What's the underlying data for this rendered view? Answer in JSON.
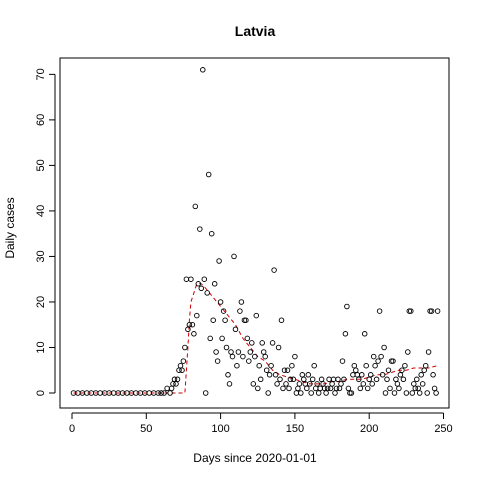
{
  "chart_data": {
    "type": "scatter",
    "title": "Latvia",
    "xlabel": "Days since 2020-01-01",
    "ylabel": "Daily cases",
    "xlim": [
      0,
      250
    ],
    "ylim": [
      0,
      72
    ],
    "xticks": [
      0,
      50,
      100,
      150,
      200,
      250
    ],
    "yticks": [
      0,
      10,
      20,
      30,
      40,
      50,
      60,
      70
    ],
    "grid": false,
    "legend": "none",
    "colors": {
      "points": "#000000",
      "trend": "#cc0000",
      "axis": "#000000"
    },
    "points": [
      [
        1,
        0
      ],
      [
        4,
        0
      ],
      [
        7,
        0
      ],
      [
        10,
        0
      ],
      [
        13,
        0
      ],
      [
        16,
        0
      ],
      [
        19,
        0
      ],
      [
        22,
        0
      ],
      [
        25,
        0
      ],
      [
        28,
        0
      ],
      [
        31,
        0
      ],
      [
        34,
        0
      ],
      [
        37,
        0
      ],
      [
        40,
        0
      ],
      [
        43,
        0
      ],
      [
        46,
        0
      ],
      [
        49,
        0
      ],
      [
        52,
        0
      ],
      [
        55,
        0
      ],
      [
        58,
        0
      ],
      [
        60,
        0
      ],
      [
        62,
        0
      ],
      [
        64,
        1
      ],
      [
        66,
        0
      ],
      [
        67,
        1
      ],
      [
        68,
        2
      ],
      [
        69,
        3
      ],
      [
        70,
        2
      ],
      [
        71,
        3
      ],
      [
        72,
        5
      ],
      [
        73,
        6
      ],
      [
        74,
        5
      ],
      [
        75,
        7
      ],
      [
        76,
        10
      ],
      [
        77,
        25
      ],
      [
        78,
        14
      ],
      [
        79,
        15
      ],
      [
        80,
        25
      ],
      [
        81,
        15
      ],
      [
        82,
        13
      ],
      [
        83,
        41
      ],
      [
        84,
        17
      ],
      [
        85,
        24
      ],
      [
        86,
        36
      ],
      [
        87,
        23
      ],
      [
        88,
        71
      ],
      [
        89,
        25
      ],
      [
        90,
        0
      ],
      [
        91,
        22
      ],
      [
        92,
        48
      ],
      [
        93,
        12
      ],
      [
        94,
        35
      ],
      [
        95,
        16
      ],
      [
        96,
        24
      ],
      [
        97,
        9
      ],
      [
        98,
        7
      ],
      [
        99,
        29
      ],
      [
        100,
        20
      ],
      [
        101,
        12
      ],
      [
        102,
        18
      ],
      [
        103,
        16
      ],
      [
        104,
        10
      ],
      [
        105,
        4
      ],
      [
        106,
        2
      ],
      [
        107,
        9
      ],
      [
        108,
        8
      ],
      [
        109,
        30
      ],
      [
        110,
        14
      ],
      [
        111,
        6
      ],
      [
        112,
        9
      ],
      [
        113,
        18
      ],
      [
        114,
        20
      ],
      [
        115,
        8
      ],
      [
        116,
        16
      ],
      [
        117,
        16
      ],
      [
        118,
        12
      ],
      [
        119,
        7
      ],
      [
        120,
        9
      ],
      [
        121,
        11
      ],
      [
        122,
        2
      ],
      [
        123,
        8
      ],
      [
        124,
        17
      ],
      [
        125,
        1
      ],
      [
        126,
        6
      ],
      [
        127,
        3
      ],
      [
        128,
        11
      ],
      [
        129,
        9
      ],
      [
        130,
        8
      ],
      [
        131,
        5
      ],
      [
        132,
        0
      ],
      [
        133,
        4
      ],
      [
        134,
        6
      ],
      [
        135,
        11
      ],
      [
        136,
        27
      ],
      [
        137,
        4
      ],
      [
        138,
        2
      ],
      [
        139,
        10
      ],
      [
        140,
        3
      ],
      [
        141,
        16
      ],
      [
        142,
        1
      ],
      [
        143,
        5
      ],
      [
        144,
        2
      ],
      [
        145,
        5
      ],
      [
        146,
        1
      ],
      [
        147,
        3
      ],
      [
        148,
        6
      ],
      [
        149,
        3
      ],
      [
        150,
        8
      ],
      [
        151,
        0
      ],
      [
        152,
        1
      ],
      [
        153,
        2
      ],
      [
        154,
        0
      ],
      [
        155,
        4
      ],
      [
        156,
        3
      ],
      [
        157,
        2
      ],
      [
        158,
        1
      ],
      [
        159,
        4
      ],
      [
        160,
        2
      ],
      [
        161,
        0
      ],
      [
        162,
        3
      ],
      [
        163,
        6
      ],
      [
        164,
        1
      ],
      [
        165,
        2
      ],
      [
        166,
        0
      ],
      [
        167,
        1
      ],
      [
        168,
        3
      ],
      [
        169,
        2
      ],
      [
        170,
        1
      ],
      [
        171,
        0
      ],
      [
        172,
        1
      ],
      [
        173,
        3
      ],
      [
        174,
        1
      ],
      [
        175,
        2
      ],
      [
        176,
        3
      ],
      [
        177,
        0
      ],
      [
        178,
        1
      ],
      [
        179,
        3
      ],
      [
        180,
        1
      ],
      [
        181,
        2
      ],
      [
        182,
        7
      ],
      [
        183,
        3
      ],
      [
        184,
        13
      ],
      [
        185,
        19
      ],
      [
        186,
        1
      ],
      [
        187,
        0
      ],
      [
        188,
        0
      ],
      [
        189,
        4
      ],
      [
        190,
        6
      ],
      [
        191,
        5
      ],
      [
        192,
        4
      ],
      [
        193,
        3
      ],
      [
        194,
        1
      ],
      [
        195,
        4
      ],
      [
        196,
        2
      ],
      [
        197,
        13
      ],
      [
        198,
        6
      ],
      [
        199,
        1
      ],
      [
        200,
        3
      ],
      [
        201,
        4
      ],
      [
        202,
        2
      ],
      [
        203,
        8
      ],
      [
        204,
        6
      ],
      [
        205,
        3
      ],
      [
        206,
        7
      ],
      [
        207,
        18
      ],
      [
        208,
        8
      ],
      [
        209,
        4
      ],
      [
        210,
        10
      ],
      [
        211,
        0
      ],
      [
        212,
        3
      ],
      [
        213,
        5
      ],
      [
        214,
        1
      ],
      [
        215,
        7
      ],
      [
        216,
        7
      ],
      [
        217,
        0
      ],
      [
        218,
        3
      ],
      [
        219,
        2
      ],
      [
        220,
        1
      ],
      [
        221,
        4
      ],
      [
        222,
        5
      ],
      [
        223,
        3
      ],
      [
        224,
        6
      ],
      [
        225,
        0
      ],
      [
        226,
        9
      ],
      [
        227,
        18
      ],
      [
        228,
        18
      ],
      [
        229,
        0
      ],
      [
        230,
        2
      ],
      [
        231,
        1
      ],
      [
        232,
        3
      ],
      [
        233,
        1
      ],
      [
        234,
        0
      ],
      [
        235,
        4
      ],
      [
        236,
        2
      ],
      [
        237,
        5
      ],
      [
        238,
        6
      ],
      [
        239,
        0
      ],
      [
        240,
        9
      ],
      [
        241,
        18
      ],
      [
        242,
        18
      ],
      [
        243,
        4
      ],
      [
        244,
        1
      ],
      [
        245,
        0
      ],
      [
        246,
        18
      ]
    ],
    "trend": [
      [
        1,
        0
      ],
      [
        20,
        0
      ],
      [
        40,
        0
      ],
      [
        60,
        0
      ],
      [
        72,
        0
      ],
      [
        76,
        0
      ],
      [
        77,
        5
      ],
      [
        78,
        10
      ],
      [
        79,
        16
      ],
      [
        80,
        20
      ],
      [
        82,
        22
      ],
      [
        84,
        24
      ],
      [
        87,
        24
      ],
      [
        90,
        23
      ],
      [
        95,
        21
      ],
      [
        100,
        19
      ],
      [
        105,
        17
      ],
      [
        110,
        15
      ],
      [
        115,
        12
      ],
      [
        120,
        10
      ],
      [
        125,
        8
      ],
      [
        130,
        7
      ],
      [
        135,
        5
      ],
      [
        140,
        4
      ],
      [
        145,
        3.5
      ],
      [
        150,
        3
      ],
      [
        155,
        2.5
      ],
      [
        160,
        2
      ],
      [
        165,
        2
      ],
      [
        170,
        2
      ],
      [
        175,
        2.5
      ],
      [
        180,
        2.5
      ],
      [
        185,
        3
      ],
      [
        190,
        3
      ],
      [
        195,
        3
      ],
      [
        200,
        3.5
      ],
      [
        205,
        4
      ],
      [
        210,
        4
      ],
      [
        215,
        4.5
      ],
      [
        220,
        5
      ],
      [
        225,
        5
      ],
      [
        230,
        5.5
      ],
      [
        235,
        5.5
      ],
      [
        240,
        5.5
      ],
      [
        246,
        6
      ]
    ]
  }
}
